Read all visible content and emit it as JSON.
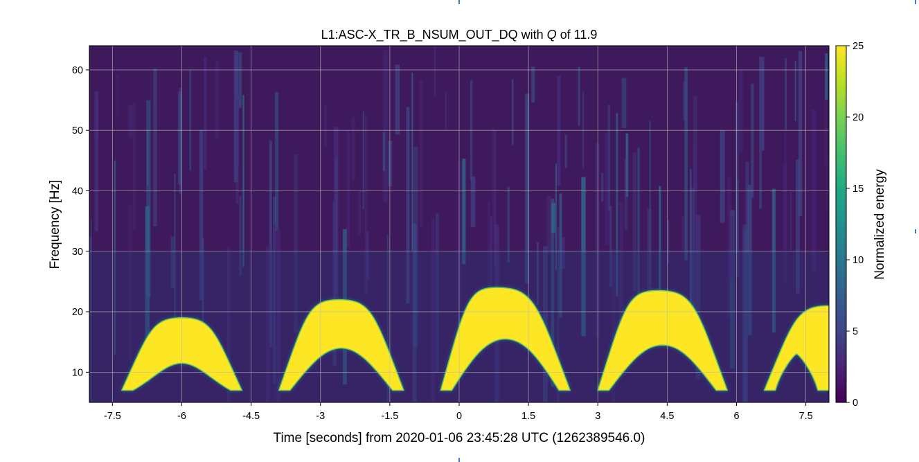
{
  "chart_data": {
    "type": "heatmap",
    "title_prefix": "L1:ASC-X_TR_B_NSUM_OUT_DQ with ",
    "title_q": "Q",
    "title_suffix": " of 11.9",
    "xlabel": "Time [seconds] from 2020-01-06 23:45:28 UTC (1262389546.0)",
    "ylabel": "Frequency [Hz]",
    "colorbar_label": "Normalized energy",
    "x_ticks": [
      -7.5,
      -6,
      -4.5,
      -3,
      -1.5,
      0,
      1.5,
      3,
      4.5,
      6,
      7.5
    ],
    "x_tick_labels": [
      "-7.5",
      "-6",
      "-4.5",
      "-3",
      "-1.5",
      "0",
      "1.5",
      "3",
      "4.5",
      "6",
      "7.5"
    ],
    "y_ticks": [
      10,
      20,
      30,
      40,
      50,
      60
    ],
    "y_tick_labels": [
      "10",
      "20",
      "30",
      "40",
      "50",
      "60"
    ],
    "colorbar_ticks": [
      0,
      5,
      10,
      15,
      20,
      25
    ],
    "colorbar_tick_labels": [
      "0",
      "5",
      "10",
      "15",
      "20",
      "25"
    ],
    "xlim": [
      -8,
      8
    ],
    "ylim": [
      5,
      64
    ],
    "clim": [
      0,
      25
    ],
    "colormap": "viridis",
    "grid": true,
    "arches": [
      {
        "t_start": -7.3,
        "t_end": -4.7,
        "t_peak": -6.0,
        "f_base": 7,
        "f_top": 19,
        "f_inner_top": 11.5
      },
      {
        "t_start": -3.9,
        "t_end": -1.2,
        "t_peak": -2.6,
        "f_base": 7,
        "f_top": 22,
        "f_inner_top": 14
      },
      {
        "t_start": -0.4,
        "t_end": 2.4,
        "t_peak": 0.8,
        "f_base": 7,
        "f_top": 24,
        "f_inner_top": 15.5
      },
      {
        "t_start": 3.0,
        "t_end": 5.8,
        "t_peak": 4.3,
        "f_base": 7,
        "f_top": 23.5,
        "f_inner_top": 14.5
      },
      {
        "t_start": 6.6,
        "t_end": 8.0,
        "t_peak": 8.0,
        "f_base": 7,
        "f_top": 21,
        "f_inner_top": 13
      }
    ]
  }
}
